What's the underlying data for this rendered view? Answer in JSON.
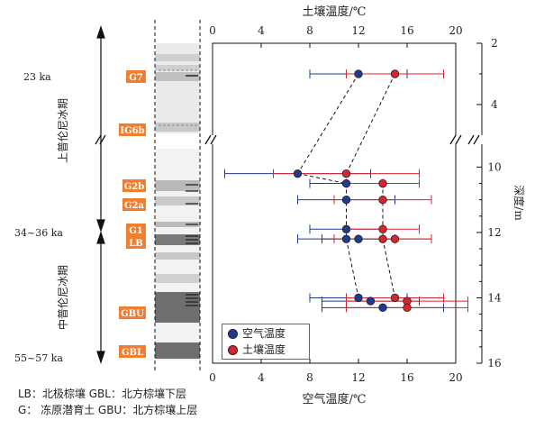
{
  "chart_data": {
    "type": "scatter",
    "x_axis_top_label": "土壤温度/℃",
    "x_axis_bottom_label": "空气温度/℃",
    "y_axis_label": "深度/m",
    "x_ticks": [
      "0",
      "4",
      "8",
      "12",
      "16",
      "20"
    ],
    "xlim": [
      0,
      20
    ],
    "y_ticks_upper": [
      "2",
      "4"
    ],
    "y_ticks_lower": [
      "10",
      "12",
      "14",
      "16"
    ],
    "ylim_upper": [
      2,
      5
    ],
    "ylim_lower": [
      9.3,
      16
    ],
    "axis_break": "between depth 5 and 9.3",
    "series": [
      {
        "name": "空气温度",
        "color": "#1f3a93",
        "points": [
          {
            "depth": 3,
            "x": 12,
            "err": 4
          },
          {
            "depth": 10.2,
            "x": 7,
            "err": 6
          },
          {
            "depth": 10.5,
            "x": 11,
            "err": 3
          },
          {
            "depth": 11,
            "x": 11,
            "err": 4
          },
          {
            "depth": 11.9,
            "x": 11,
            "err": 3
          },
          {
            "depth": 12.2,
            "x": 11,
            "err": 4
          },
          {
            "depth": 12.2,
            "x": 12,
            "err": 3
          },
          {
            "depth": 14,
            "x": 12,
            "err": 4
          },
          {
            "depth": 14.1,
            "x": 13,
            "err": 4
          },
          {
            "depth": 14.3,
            "x": 14,
            "err": 5
          }
        ]
      },
      {
        "name": "土壤温度",
        "color": "#d9232e",
        "points": [
          {
            "depth": 3,
            "x": 15,
            "err": 4
          },
          {
            "depth": 10.2,
            "x": 11,
            "err": 6
          },
          {
            "depth": 10.5,
            "x": 14,
            "err": 3
          },
          {
            "depth": 11,
            "x": 14,
            "err": 4
          },
          {
            "depth": 11.9,
            "x": 14,
            "err": 3
          },
          {
            "depth": 12.2,
            "x": 14,
            "err": 4
          },
          {
            "depth": 12.2,
            "x": 15,
            "err": 3
          },
          {
            "depth": 14,
            "x": 15,
            "err": 4
          },
          {
            "depth": 14.1,
            "x": 16,
            "err": 5
          },
          {
            "depth": 14.3,
            "x": 16,
            "err": 5
          }
        ]
      }
    ],
    "dashed_links": [
      {
        "from": [
          12,
          3
        ],
        "to": [
          7,
          10.2
        ]
      },
      {
        "from": [
          15,
          3
        ],
        "to": [
          11,
          10.2
        ]
      },
      {
        "from": [
          7,
          10.2
        ],
        "to": [
          11,
          10.5
        ]
      },
      {
        "from": [
          11,
          10.5
        ],
        "to": [
          11,
          12.2
        ]
      },
      {
        "from": [
          14,
          10.5
        ],
        "to": [
          14,
          12.2
        ]
      },
      {
        "from": [
          11,
          12.2
        ],
        "to": [
          12,
          14
        ]
      },
      {
        "from": [
          14,
          12.2
        ],
        "to": [
          15,
          14
        ]
      }
    ]
  },
  "periods": [
    {
      "label": "上普伦尼冰期"
    },
    {
      "label": "中普伦尼冰期"
    }
  ],
  "ages": [
    "23 ka",
    "34~36 ka",
    "55~57 ka"
  ],
  "unit_labels": [
    "G7",
    "IG6b",
    "G2b",
    "G2a",
    "G1",
    "LB",
    "GBU",
    "GBL"
  ],
  "legend": [
    {
      "label": "空气温度",
      "color": "#1f3a93"
    },
    {
      "label": "土壤温度",
      "color": "#d9232e"
    }
  ],
  "notes": {
    "line1": "LB：北极棕壤    GBL：北方棕壤下层",
    "line2": "G：   冻原潜育土    GBU：北方棕壤上层"
  },
  "colors": {
    "label_bg": "#f07e2e",
    "air": "#1f3a93",
    "soil": "#d9232e"
  }
}
